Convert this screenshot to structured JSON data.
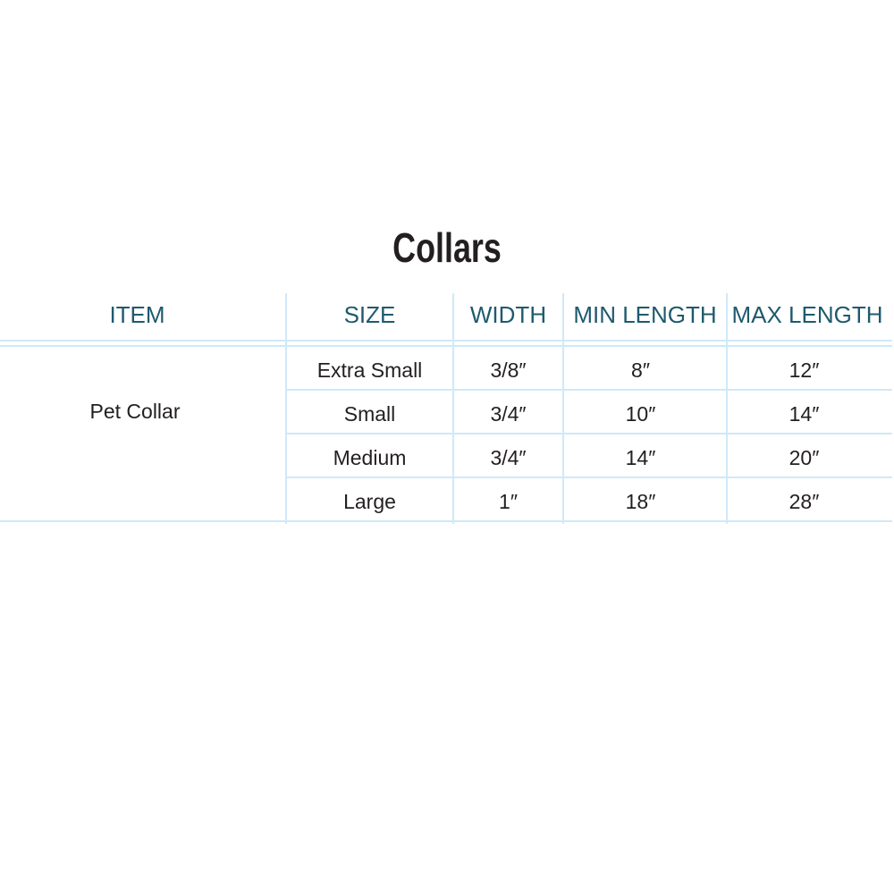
{
  "title": "Collars",
  "headers": [
    "ITEM",
    "SIZE",
    "WIDTH",
    "MIN LENGTH",
    "MAX LENGTH"
  ],
  "item": "Pet Collar",
  "rows": [
    {
      "size": "Extra Small",
      "width": "3/8″",
      "min": "8″",
      "max": "12″"
    },
    {
      "size": "Small",
      "width": "3/4″",
      "min": "10″",
      "max": "14″"
    },
    {
      "size": "Medium",
      "width": "3/4″",
      "min": "14″",
      "max": "20″"
    },
    {
      "size": "Large",
      "width": "1″",
      "min": "18″",
      "max": "28″"
    }
  ],
  "colors": {
    "header_text": "#1e5a6e",
    "grid": "#cfe9f8",
    "body_text": "#231f20"
  }
}
